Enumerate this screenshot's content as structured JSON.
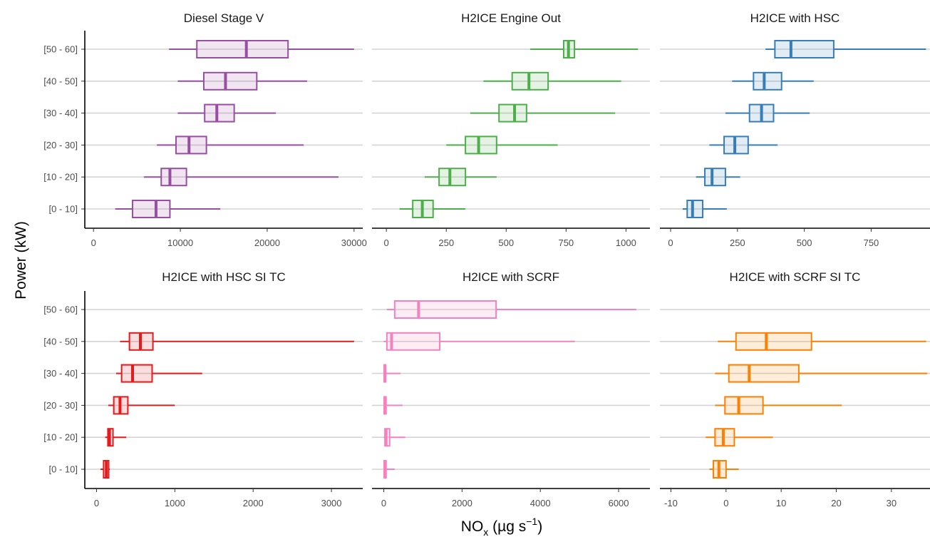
{
  "chart_data": {
    "type": "boxplot",
    "ylabel": "Power (kW)",
    "xlabel": {
      "base": "NO",
      "sub": "x",
      "unit": " (µg s",
      "sup": "−1",
      "close": ")"
    },
    "categories": [
      "[0 - 10]",
      "[10 - 20]",
      "[20 - 30]",
      "[30 - 40]",
      "[40 - 50]",
      "[50 - 60]"
    ],
    "grid": "horizontal",
    "panels": [
      {
        "title": "Diesel Stage V",
        "color": "#984ea3",
        "xlim": [
          -1000,
          31000
        ],
        "xticks": [
          0,
          10000,
          20000,
          30000
        ],
        "xtick_labels": [
          "0",
          "10000",
          "20000",
          "30000"
        ],
        "boxes": [
          {
            "min": 2500,
            "q1": 4500,
            "median": 7200,
            "q3": 8800,
            "max": 14600
          },
          {
            "min": 5800,
            "q1": 7800,
            "median": 8800,
            "q3": 10700,
            "max": 28200
          },
          {
            "min": 7300,
            "q1": 9500,
            "median": 11000,
            "q3": 13000,
            "max": 24200
          },
          {
            "min": 9700,
            "q1": 12800,
            "median": 14200,
            "q3": 16200,
            "max": 21000
          },
          {
            "min": 9700,
            "q1": 12700,
            "median": 15200,
            "q3": 18800,
            "max": 24600
          },
          {
            "min": 8700,
            "q1": 11900,
            "median": 17600,
            "q3": 22400,
            "max": 30000
          }
        ]
      },
      {
        "title": "H2ICE Engine Out",
        "color": "#4daf4a",
        "xlim": [
          -60,
          1100
        ],
        "xticks": [
          0,
          250,
          500,
          750,
          1000
        ],
        "xtick_labels": [
          "0",
          "250",
          "500",
          "750",
          "1000"
        ],
        "boxes": [
          {
            "min": 55,
            "q1": 110,
            "median": 150,
            "q3": 195,
            "max": 330
          },
          {
            "min": 160,
            "q1": 220,
            "median": 265,
            "q3": 330,
            "max": 460
          },
          {
            "min": 250,
            "q1": 330,
            "median": 385,
            "q3": 460,
            "max": 715
          },
          {
            "min": 350,
            "q1": 470,
            "median": 535,
            "q3": 585,
            "max": 955
          },
          {
            "min": 405,
            "q1": 525,
            "median": 595,
            "q3": 675,
            "max": 980
          },
          {
            "min": 600,
            "q1": 740,
            "median": 760,
            "q3": 785,
            "max": 1050
          }
        ]
      },
      {
        "title": "H2ICE with HSC",
        "color": "#377eb8",
        "xlim": [
          -40,
          970
        ],
        "xticks": [
          0,
          250,
          500,
          750
        ],
        "xtick_labels": [
          "0",
          "250",
          "500",
          "750"
        ],
        "boxes": [
          {
            "min": 45,
            "q1": 62,
            "median": 82,
            "q3": 120,
            "max": 210
          },
          {
            "min": 95,
            "q1": 128,
            "median": 155,
            "q3": 205,
            "max": 260
          },
          {
            "min": 145,
            "q1": 200,
            "median": 240,
            "q3": 290,
            "max": 400
          },
          {
            "min": 205,
            "q1": 295,
            "median": 340,
            "q3": 385,
            "max": 520
          },
          {
            "min": 230,
            "q1": 310,
            "median": 350,
            "q3": 415,
            "max": 535
          },
          {
            "min": 355,
            "q1": 390,
            "median": 450,
            "q3": 610,
            "max": 955
          }
        ]
      },
      {
        "title": "H2ICE with HSC SI TC",
        "color": "#e41a1c",
        "xlim": [
          -150,
          3400
        ],
        "xticks": [
          0,
          1000,
          2000,
          3000
        ],
        "xtick_labels": [
          "0",
          "1000",
          "2000",
          "3000"
        ],
        "boxes": [
          {
            "min": 50,
            "q1": 90,
            "median": 125,
            "q3": 155,
            "max": 170
          },
          {
            "min": 110,
            "q1": 145,
            "median": 165,
            "q3": 210,
            "max": 380
          },
          {
            "min": 150,
            "q1": 220,
            "median": 300,
            "q3": 400,
            "max": 1000
          },
          {
            "min": 250,
            "q1": 320,
            "median": 460,
            "q3": 710,
            "max": 1350
          },
          {
            "min": 300,
            "q1": 420,
            "median": 560,
            "q3": 720,
            "max": 3290
          },
          {
            "min": null,
            "q1": null,
            "median": null,
            "q3": null,
            "max": null
          }
        ]
      },
      {
        "title": "H2ICE with SCRF",
        "color": "#f781bf",
        "xlim": [
          -300,
          6800
        ],
        "xticks": [
          0,
          2000,
          4000,
          6000
        ],
        "xtick_labels": [
          "0",
          "2000",
          "4000",
          "6000"
        ],
        "boxes": [
          {
            "min": 0,
            "q1": 10,
            "median": 30,
            "q3": 60,
            "max": 280
          },
          {
            "min": 0,
            "q1": 30,
            "median": 60,
            "q3": 150,
            "max": 550
          },
          {
            "min": 0,
            "q1": 10,
            "median": 30,
            "q3": 60,
            "max": 480
          },
          {
            "min": 0,
            "q1": 10,
            "median": 30,
            "q3": 50,
            "max": 430
          },
          {
            "min": 0,
            "q1": 80,
            "median": 200,
            "q3": 1430,
            "max": 4880
          },
          {
            "min": 80,
            "q1": 280,
            "median": 890,
            "q3": 2870,
            "max": 6450
          }
        ]
      },
      {
        "title": "H2ICE with SCRF SI TC",
        "color": "#ff7f00",
        "xlim": [
          -12,
          37
        ],
        "xticks": [
          -10,
          0,
          10,
          20,
          30
        ],
        "xtick_labels": [
          "-10",
          "0",
          "10",
          "20",
          "30"
        ],
        "boxes": [
          {
            "min": -3,
            "q1": -2.3,
            "median": -1.3,
            "q3": 0,
            "max": 2.3
          },
          {
            "min": -3.7,
            "q1": -2,
            "median": -0.5,
            "q3": 1.5,
            "max": 8.5
          },
          {
            "min": -2,
            "q1": -0.2,
            "median": 2.3,
            "q3": 6.7,
            "max": 21
          },
          {
            "min": -2,
            "q1": 0.5,
            "median": 4.2,
            "q3": 13.2,
            "max": 36.5
          },
          {
            "min": -1.5,
            "q1": 1.8,
            "median": 7.3,
            "q3": 15.5,
            "max": 36.3
          },
          {
            "min": null,
            "q1": null,
            "median": null,
            "q3": null,
            "max": null
          }
        ]
      }
    ]
  }
}
